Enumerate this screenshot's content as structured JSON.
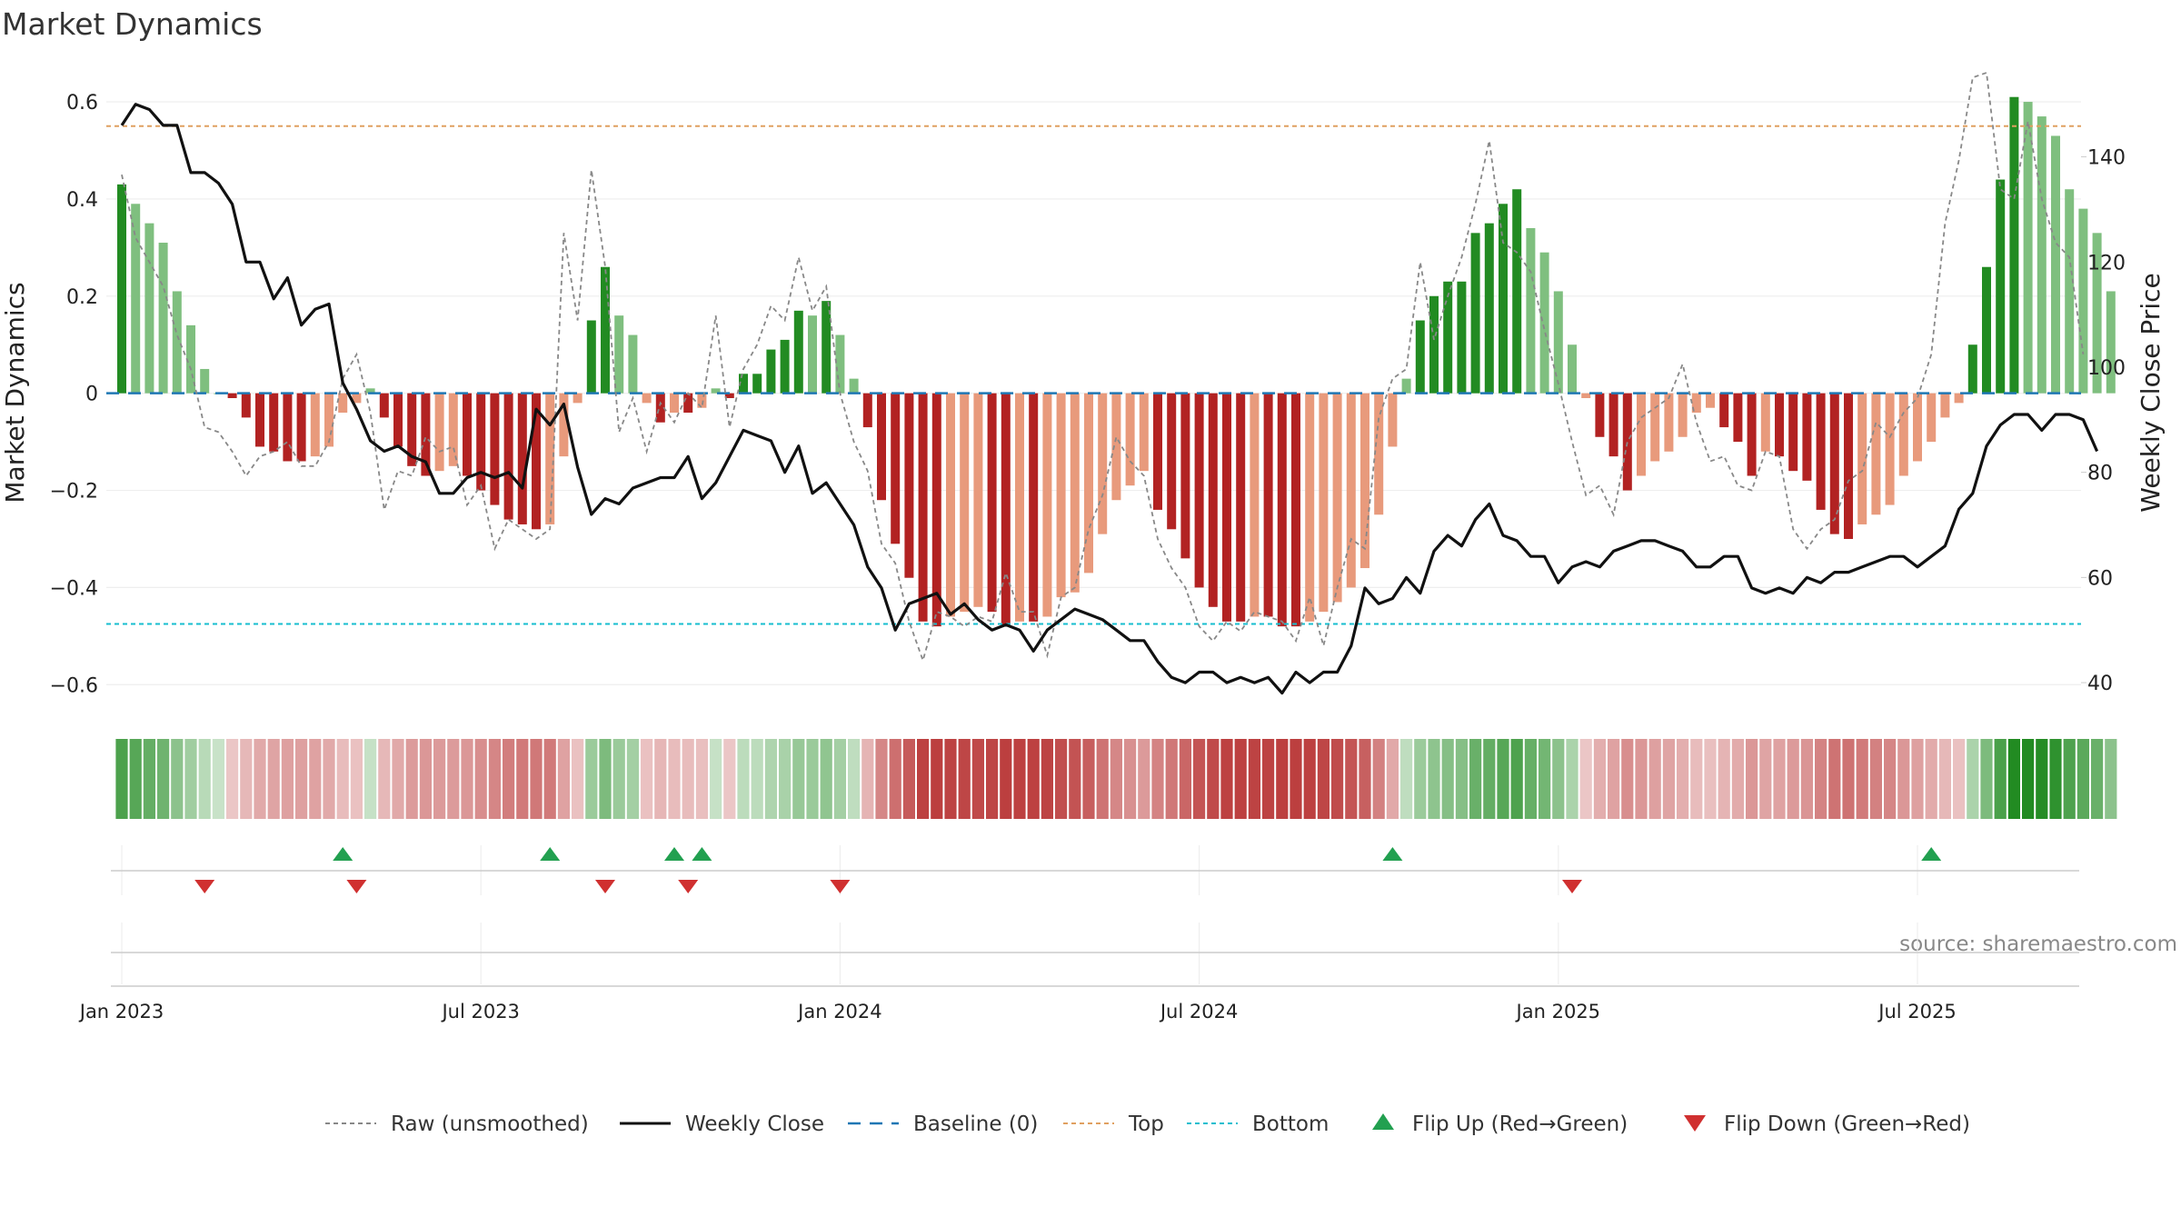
{
  "chart_data": {
    "type": "bar",
    "title": "Market Dynamics",
    "ylabel": "Market Dynamics",
    "y2label": "Weekly Close Price",
    "ylim": [
      -0.65,
      0.66
    ],
    "y2lim": [
      35,
      156
    ],
    "yticks": [
      "0.6",
      "0.4",
      "0.2",
      "0",
      "−0.2",
      "−0.4",
      "−0.6"
    ],
    "ytick_values": [
      0.6,
      0.4,
      0.2,
      0,
      -0.2,
      -0.4,
      -0.6
    ],
    "y2ticks": [
      "140",
      "120",
      "100",
      "80",
      "60",
      "40"
    ],
    "y2tick_values": [
      140,
      120,
      100,
      80,
      60,
      40
    ],
    "xticks": [
      "Jan 2023",
      "Jul 2023",
      "Jan 2024",
      "Jul 2024",
      "Jan 2025",
      "Jul 2025"
    ],
    "xtick_weeks": [
      0,
      26,
      52,
      78,
      104,
      130
    ],
    "top_level": 0.55,
    "bottom_level": -0.475,
    "series": [
      {
        "name": "Market Dynamics",
        "values": [
          0.43,
          0.39,
          0.35,
          0.31,
          0.21,
          0.14,
          0.05,
          0.0,
          -0.01,
          -0.05,
          -0.11,
          -0.12,
          -0.14,
          -0.14,
          -0.13,
          -0.11,
          -0.04,
          -0.02,
          0.01,
          -0.05,
          -0.11,
          -0.15,
          -0.17,
          -0.16,
          -0.15,
          -0.17,
          -0.2,
          -0.23,
          -0.26,
          -0.27,
          -0.28,
          -0.27,
          -0.13,
          -0.02,
          0.15,
          0.26,
          0.16,
          0.12,
          -0.02,
          -0.06,
          -0.04,
          -0.04,
          -0.03,
          0.01,
          -0.01,
          0.04,
          0.04,
          0.09,
          0.11,
          0.17,
          0.16,
          0.19,
          0.12,
          0.03,
          -0.07,
          -0.22,
          -0.31,
          -0.38,
          -0.47,
          -0.48,
          -0.46,
          -0.45,
          -0.44,
          -0.45,
          -0.48,
          -0.47,
          -0.47,
          -0.46,
          -0.42,
          -0.41,
          -0.37,
          -0.29,
          -0.22,
          -0.19,
          -0.16,
          -0.24,
          -0.28,
          -0.34,
          -0.4,
          -0.44,
          -0.47,
          -0.47,
          -0.46,
          -0.46,
          -0.48,
          -0.48,
          -0.47,
          -0.45,
          -0.43,
          -0.4,
          -0.36,
          -0.25,
          -0.11,
          0.03,
          0.15,
          0.2,
          0.23,
          0.23,
          0.33,
          0.35,
          0.39,
          0.42,
          0.34,
          0.29,
          0.21,
          0.1,
          -0.01,
          -0.09,
          -0.13,
          -0.2,
          -0.17,
          -0.14,
          -0.12,
          -0.09,
          -0.04,
          -0.03,
          -0.07,
          -0.1,
          -0.17,
          -0.12,
          -0.13,
          -0.16,
          -0.18,
          -0.24,
          -0.29,
          -0.3,
          -0.27,
          -0.25,
          -0.23,
          -0.17,
          -0.14,
          -0.1,
          -0.05,
          -0.02,
          0.1,
          0.26,
          0.44,
          0.61,
          0.6,
          0.57,
          0.53,
          0.42,
          0.38,
          0.33,
          0.21
        ]
      },
      {
        "name": "Raw (unsmoothed)",
        "values": [
          0.45,
          0.32,
          0.27,
          0.22,
          0.12,
          0.05,
          -0.07,
          -0.08,
          -0.12,
          -0.17,
          -0.13,
          -0.12,
          -0.1,
          -0.15,
          -0.15,
          -0.1,
          0.03,
          0.08,
          -0.04,
          -0.24,
          -0.16,
          -0.17,
          -0.09,
          -0.12,
          -0.11,
          -0.23,
          -0.19,
          -0.32,
          -0.26,
          -0.28,
          -0.3,
          -0.28,
          0.33,
          0.15,
          0.46,
          0.26,
          -0.08,
          -0.01,
          -0.12,
          -0.02,
          -0.06,
          0.0,
          -0.03,
          0.16,
          -0.07,
          0.05,
          0.1,
          0.18,
          0.15,
          0.28,
          0.17,
          0.22,
          0.0,
          -0.1,
          -0.16,
          -0.31,
          -0.35,
          -0.47,
          -0.55,
          -0.45,
          -0.46,
          -0.48,
          -0.46,
          -0.47,
          -0.37,
          -0.45,
          -0.45,
          -0.54,
          -0.42,
          -0.4,
          -0.28,
          -0.21,
          -0.09,
          -0.14,
          -0.17,
          -0.3,
          -0.36,
          -0.4,
          -0.48,
          -0.51,
          -0.47,
          -0.49,
          -0.45,
          -0.46,
          -0.47,
          -0.51,
          -0.42,
          -0.52,
          -0.4,
          -0.3,
          -0.32,
          -0.05,
          0.03,
          0.05,
          0.27,
          0.11,
          0.2,
          0.28,
          0.39,
          0.52,
          0.31,
          0.29,
          0.25,
          0.13,
          0.02,
          -0.1,
          -0.21,
          -0.19,
          -0.25,
          -0.1,
          -0.05,
          -0.03,
          -0.01,
          0.06,
          -0.06,
          -0.14,
          -0.13,
          -0.19,
          -0.2,
          -0.12,
          -0.13,
          -0.28,
          -0.32,
          -0.28,
          -0.26,
          -0.18,
          -0.16,
          -0.06,
          -0.09,
          -0.04,
          -0.01,
          0.08,
          0.35,
          0.48,
          0.65,
          0.66,
          0.42,
          0.4,
          0.56,
          0.4,
          0.31,
          0.28,
          0.08
        ]
      },
      {
        "name": "Weekly Close",
        "values": [
          146,
          150,
          149,
          146,
          146,
          137,
          137,
          135,
          131,
          120,
          120,
          113,
          117,
          108,
          111,
          112,
          97,
          92,
          86,
          84,
          85,
          83,
          82,
          76,
          76,
          79,
          80,
          79,
          80,
          77,
          92,
          89,
          93,
          81,
          72,
          75,
          74,
          77,
          78,
          79,
          79,
          83,
          75,
          78,
          83,
          88,
          87,
          86,
          80,
          85,
          76,
          78,
          74,
          70,
          62,
          58,
          50,
          55,
          56,
          57,
          53,
          55,
          52,
          50,
          51,
          50,
          46,
          50,
          52,
          54,
          53,
          52,
          50,
          48,
          48,
          44,
          41,
          40,
          42,
          42,
          40,
          41,
          40,
          41,
          38,
          42,
          40,
          42,
          42,
          47,
          58,
          55,
          56,
          60,
          57,
          65,
          68,
          66,
          71,
          74,
          68,
          67,
          64,
          64,
          59,
          62,
          63,
          62,
          65,
          66,
          67,
          67,
          66,
          65,
          62,
          62,
          64,
          64,
          58,
          57,
          58,
          57,
          60,
          59,
          61,
          61,
          62,
          63,
          64,
          64,
          62,
          64,
          66,
          73,
          76,
          85,
          89,
          91,
          91,
          88,
          91,
          91,
          90,
          84
        ]
      },
      {
        "name": "Baseline (0)",
        "values": [
          0
        ]
      },
      {
        "name": "Top",
        "values": [
          0.55
        ]
      },
      {
        "name": "Bottom",
        "values": [
          -0.475
        ]
      },
      {
        "name": "Flip Up (Red→Green)",
        "x_weeks": [
          16,
          31,
          40,
          42,
          92,
          131
        ]
      },
      {
        "name": "Flip Down (Green→Red)",
        "x_weeks": [
          6,
          17,
          35,
          41,
          52,
          105
        ]
      }
    ],
    "legend_placement": "bottom-center",
    "grid": true
  },
  "legend": [
    {
      "label": "Raw (unsmoothed)",
      "icon": "dashed-gray-line"
    },
    {
      "label": "Weekly Close",
      "icon": "solid-black-line"
    },
    {
      "label": "Baseline (0)",
      "icon": "dashed-blue-line"
    },
    {
      "label": "Top",
      "icon": "dotted-orange-line"
    },
    {
      "label": "Bottom",
      "icon": "dotted-cyan-line"
    },
    {
      "label": "Flip Up (Red→Green)",
      "icon": "green-up-triangle"
    },
    {
      "label": "Flip Down (Green→Red)",
      "icon": "red-down-triangle"
    }
  ],
  "source_text": "source: sharemaestro.com",
  "colors": {
    "strong_up": "#228b22",
    "weak_up": "#7fbf7f",
    "strong_down": "#b22222",
    "weak_down": "#e89a7c",
    "raw": "#888888",
    "close": "#111111",
    "baseline": "#1f77b4",
    "top": "#e0a060",
    "bottom": "#17becf",
    "flip_up": "#22a050",
    "flip_down": "#d03030"
  }
}
